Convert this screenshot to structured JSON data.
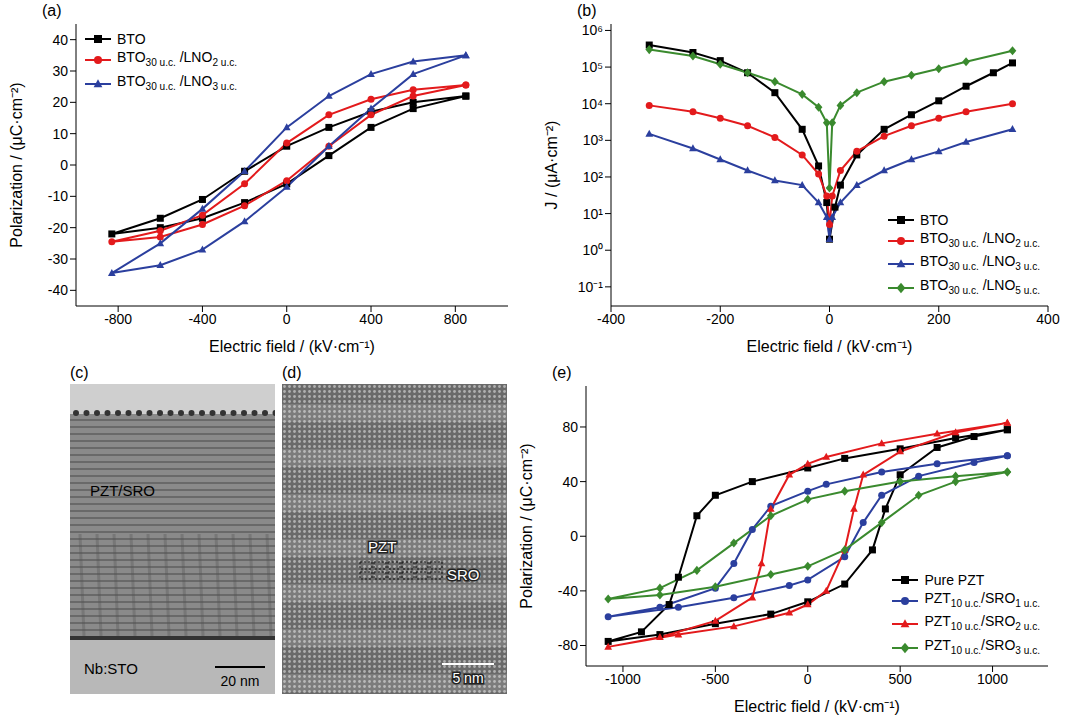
{
  "chart_data": [
    {
      "type": "line",
      "title": "(a)",
      "x_label": "Electric field / (kV·cm⁻¹)",
      "y_label": "Polarization / (μC·cm⁻²)",
      "xlim": [
        -1000,
        1050
      ],
      "xticks": [
        -800,
        -400,
        0,
        400,
        800
      ],
      "ylim": [
        -45,
        45
      ],
      "yticks": [
        -40,
        -30,
        -20,
        -10,
        0,
        10,
        20,
        30,
        40
      ],
      "legend": "upper left",
      "series": [
        {
          "name": "BTO",
          "color": "#000000",
          "marker": "square",
          "x": [
            850,
            600,
            400,
            200,
            0,
            -200,
            -400,
            -600,
            -830,
            -600,
            -400,
            -200,
            0,
            200,
            400,
            600,
            850
          ],
          "values": [
            22,
            20,
            17,
            12,
            6,
            -2,
            -11,
            -17,
            -22,
            -20,
            -17,
            -12,
            -6,
            3,
            12,
            18,
            22
          ]
        },
        {
          "name": "BTO30 u.c. /LNO2 u.c.",
          "color": "#e31a1c",
          "marker": "circle",
          "x": [
            850,
            600,
            400,
            200,
            0,
            -200,
            -400,
            -600,
            -830,
            -600,
            -400,
            -200,
            0,
            200,
            400,
            600,
            850
          ],
          "values": [
            25.5,
            24,
            21,
            16,
            7,
            -6,
            -16,
            -21,
            -24.5,
            -23,
            -19,
            -13,
            -5,
            6,
            16,
            22,
            25.5
          ]
        },
        {
          "name": "BTO30 u.c. /LNO3 u.c.",
          "color": "#2b3f9e",
          "marker": "triangle",
          "x": [
            850,
            600,
            400,
            200,
            0,
            -200,
            -400,
            -600,
            -830,
            -600,
            -400,
            -200,
            0,
            200,
            400,
            600,
            850
          ],
          "values": [
            35,
            33,
            29,
            22,
            12,
            -2,
            -14,
            -25,
            -34.5,
            -32,
            -27,
            -18,
            -7,
            6,
            18,
            29,
            35
          ]
        }
      ]
    },
    {
      "type": "line",
      "title": "(b)",
      "x_label": "Electric field / (kV·cm⁻¹)",
      "y_label": "J / (μA·cm⁻²)",
      "log": "y",
      "xlim": [
        -400,
        400
      ],
      "xticks": [
        -400,
        -200,
        0,
        200,
        400
      ],
      "ylim": [
        0.03,
        1500000
      ],
      "yticks": [
        {
          "value": 0.1,
          "label": "10⁻¹"
        },
        {
          "value": 1,
          "label": "10⁰"
        },
        {
          "value": 10,
          "label": "10¹"
        },
        {
          "value": 100,
          "label": "10²"
        },
        {
          "value": 1000,
          "label": "10³"
        },
        {
          "value": 10000,
          "label": "10⁴"
        },
        {
          "value": 100000,
          "label": "10⁵"
        },
        {
          "value": 1000000,
          "label": "10⁶"
        }
      ],
      "legend": "lower right",
      "series": [
        {
          "name": "BTO",
          "color": "#000000",
          "marker": "square",
          "x": [
            -330,
            -250,
            -200,
            -150,
            -100,
            -50,
            -20,
            -5,
            0,
            10,
            20,
            50,
            100,
            150,
            200,
            250,
            300,
            335
          ],
          "values": [
            400000,
            250000,
            150000,
            70000,
            20000,
            2000,
            200,
            20,
            2,
            15,
            60,
            400,
            2000,
            5000,
            12000,
            30000,
            70000,
            130000
          ]
        },
        {
          "name": "BTO30 u.c. /LNO2 u.c.",
          "color": "#e31a1c",
          "marker": "circle",
          "x": [
            -330,
            -250,
            -200,
            -150,
            -100,
            -50,
            -20,
            -5,
            0,
            5,
            20,
            50,
            100,
            150,
            200,
            250,
            335
          ],
          "values": [
            9000,
            6000,
            4000,
            2500,
            1200,
            400,
            120,
            30,
            5,
            30,
            150,
            500,
            1300,
            2500,
            4000,
            6000,
            10000
          ]
        },
        {
          "name": "BTO30 u.c. /LNO3 u.c.",
          "color": "#2b3f9e",
          "marker": "triangle",
          "x": [
            -330,
            -250,
            -200,
            -150,
            -100,
            -50,
            -20,
            -5,
            0,
            5,
            20,
            50,
            100,
            150,
            200,
            250,
            335
          ],
          "values": [
            1500,
            600,
            300,
            150,
            80,
            60,
            20,
            8,
            2,
            8,
            20,
            60,
            150,
            300,
            500,
            900,
            2000
          ]
        },
        {
          "name": "BTO30 u.c. /LNO5 u.c.",
          "color": "#3a8a2e",
          "marker": "diamond",
          "x": [
            -330,
            -250,
            -200,
            -150,
            -100,
            -50,
            -20,
            -5,
            0,
            5,
            20,
            50,
            100,
            150,
            200,
            250,
            335
          ],
          "values": [
            300000,
            200000,
            120000,
            70000,
            40000,
            18000,
            8000,
            3000,
            50,
            3000,
            9000,
            20000,
            40000,
            60000,
            90000,
            140000,
            280000
          ]
        }
      ]
    },
    {
      "type": "line",
      "title": "(e)",
      "x_label": "Electric field / (kV·cm⁻¹)",
      "y_label": "Polarization / (μC·cm⁻²)",
      "xlim": [
        -1200,
        1300
      ],
      "xticks": [
        -1000,
        -500,
        0,
        500,
        1000
      ],
      "ylim": [
        -95,
        110
      ],
      "yticks": [
        -80,
        -40,
        0,
        40,
        80
      ],
      "legend": "lower right",
      "series": [
        {
          "name": "Pure PZT",
          "color": "#000000",
          "marker": "square",
          "x": [
            1080,
            800,
            500,
            200,
            0,
            -300,
            -500,
            -600,
            -700,
            -750,
            -900,
            -1080,
            -800,
            -500,
            -200,
            0,
            200,
            350,
            420,
            500,
            700,
            900,
            1080
          ],
          "values": [
            78,
            72,
            64,
            57,
            50,
            40,
            30,
            15,
            -30,
            -50,
            -70,
            -77,
            -72,
            -64,
            -57,
            -48,
            -35,
            -10,
            20,
            45,
            65,
            73,
            78
          ]
        },
        {
          "name": "PZT10 u.c./SRO1 u.c.",
          "color": "#2b3f9e",
          "marker": "circle",
          "x": [
            1080,
            700,
            400,
            100,
            0,
            -200,
            -300,
            -400,
            -500,
            -800,
            -1080,
            -700,
            -400,
            -100,
            0,
            200,
            300,
            400,
            600,
            900,
            1080
          ],
          "values": [
            59,
            53,
            47,
            38,
            33,
            22,
            5,
            -20,
            -38,
            -52,
            -59,
            -52,
            -45,
            -36,
            -32,
            -15,
            10,
            30,
            44,
            54,
            59
          ]
        },
        {
          "name": "PZT10 u.c./SRO2 u.c.",
          "color": "#e31a1c",
          "marker": "triangle",
          "x": [
            1080,
            700,
            400,
            100,
            0,
            -100,
            -200,
            -250,
            -300,
            -500,
            -800,
            -1080,
            -700,
            -400,
            -100,
            0,
            100,
            200,
            250,
            300,
            500,
            800,
            1080
          ],
          "values": [
            83,
            75,
            68,
            58,
            53,
            45,
            20,
            -20,
            -45,
            -62,
            -74,
            -81,
            -72,
            -66,
            -56,
            -50,
            -40,
            -10,
            20,
            45,
            62,
            76,
            83
          ]
        },
        {
          "name": "PZT10 u.c./SRO3 u.c.",
          "color": "#3a8a2e",
          "marker": "diamond",
          "x": [
            1080,
            800,
            500,
            200,
            0,
            -200,
            -400,
            -600,
            -800,
            -1080,
            -800,
            -500,
            -200,
            0,
            200,
            400,
            600,
            800,
            1080
          ],
          "values": [
            47,
            44,
            40,
            33,
            27,
            15,
            -5,
            -25,
            -38,
            -46,
            -43,
            -37,
            -28,
            -22,
            -10,
            10,
            30,
            40,
            47
          ]
        }
      ]
    }
  ],
  "images": [
    {
      "title": "(c)",
      "labels": [
        "PZT/SRO",
        "Nb:STO"
      ],
      "scale_bar": "20 nm"
    },
    {
      "title": "(d)",
      "labels": [
        "PZT",
        "SRO"
      ],
      "scale_bar": "5 nm"
    }
  ]
}
